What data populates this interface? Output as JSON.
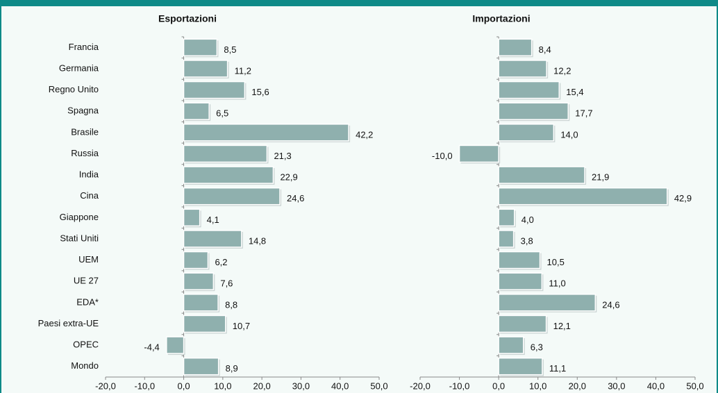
{
  "chart_data": [
    {
      "type": "hbar",
      "title": "Esportazioni",
      "categories": [
        "Francia",
        "Germania",
        "Regno Unito",
        "Spagna",
        "Brasile",
        "Russia",
        "India",
        "Cina",
        "Giappone",
        "Stati Uniti",
        "UEM",
        "UE 27",
        "EDA*",
        "Paesi extra-UE",
        "OPEC",
        "Mondo"
      ],
      "values": [
        8.5,
        11.2,
        15.6,
        6.5,
        42.2,
        21.3,
        22.9,
        24.6,
        4.1,
        14.8,
        6.2,
        7.6,
        8.8,
        10.7,
        -4.4,
        8.9
      ],
      "value_labels": [
        "8,5",
        "11,2",
        "15,6",
        "6,5",
        "42,2",
        "21,3",
        "22,9",
        "24,6",
        "4,1",
        "14,8",
        "6,2",
        "7,6",
        "8,8",
        "10,7",
        "-4,4",
        "8,9"
      ],
      "color": "#8fb0ae",
      "xlim": [
        -20,
        50
      ],
      "xticks": [
        {
          "value": -20,
          "label": "-20,0"
        },
        {
          "value": -10,
          "label": "-10,0"
        },
        {
          "value": 0,
          "label": "0,0"
        },
        {
          "value": 10,
          "label": "10,0"
        },
        {
          "value": 20,
          "label": "20,0"
        },
        {
          "value": 30,
          "label": "30,0"
        },
        {
          "value": 40,
          "label": "40,0"
        },
        {
          "value": 50,
          "label": "50,0"
        }
      ]
    },
    {
      "type": "hbar",
      "title": "Importazioni",
      "values": [
        8.4,
        12.2,
        15.4,
        17.7,
        14.0,
        -10.0,
        21.9,
        42.9,
        4.0,
        3.8,
        10.5,
        11.0,
        24.6,
        12.1,
        6.3,
        11.1
      ],
      "value_labels": [
        "8,4",
        "12,2",
        "15,4",
        "17,7",
        "14,0",
        "-10,0",
        "21,9",
        "42,9",
        "4,0",
        "3,8",
        "10,5",
        "11,0",
        "24,6",
        "12,1",
        "6,3",
        "11,1"
      ],
      "color": "#8fb0ae",
      "xlim": [
        -20,
        50
      ],
      "xticks": [
        {
          "value": -20,
          "label": "-20,0"
        },
        {
          "value": -10,
          "label": "-10,0"
        },
        {
          "value": 0,
          "label": "0,0"
        },
        {
          "value": 10,
          "label": "10,0"
        },
        {
          "value": 20,
          "label": "20,0"
        },
        {
          "value": 30,
          "label": "30,0"
        },
        {
          "value": 40,
          "label": "40,0"
        },
        {
          "value": 50,
          "label": "50,0"
        }
      ]
    }
  ]
}
